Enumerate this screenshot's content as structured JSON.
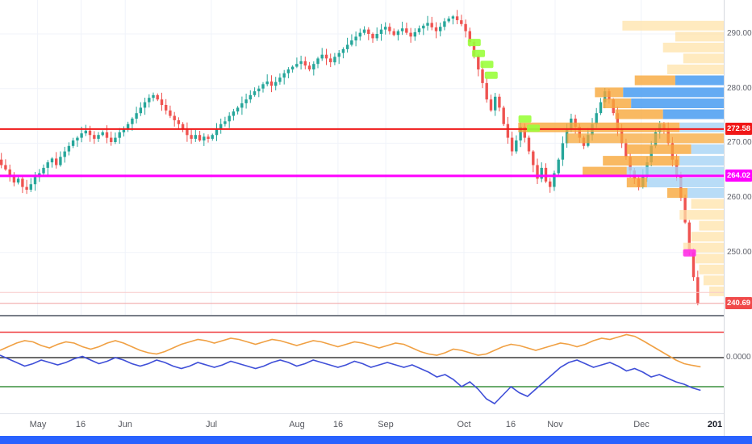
{
  "colors": {
    "up": "#26a69a",
    "down": "#ef5350",
    "vp_yellow": "#ffe3a9",
    "vp_orange": "#f7a83b",
    "vp_blue": "#3d96f0",
    "vp_lightblue": "#a6d3f5",
    "grid": "#f0f3fa",
    "buy_marker": "#9aff3c",
    "sell_marker": "#ff2ee8",
    "osc_orange": "#f0a043",
    "osc_blue": "#3f4fd8",
    "osc_green": "#3a8f3d",
    "osc_zero": "#3c3c3c",
    "osc_upper": "#ef3b3f",
    "bottom_bar": "#2962ff"
  },
  "price_axis": {
    "ticks": [
      290,
      280,
      270,
      260,
      250
    ],
    "tick_labels": [
      "290.00",
      "280.00",
      "270.00",
      "260.00",
      "250.00"
    ],
    "levels": [
      {
        "label": "272.58",
        "value": 272.58,
        "line_color": "#f01717",
        "badge_color": "#f01717",
        "width": 2
      },
      {
        "label": "264.02",
        "value": 264.02,
        "line_color": "#ff00ff",
        "badge_color": "#ff00ff",
        "width": 3
      },
      {
        "label": "",
        "value": 242.7,
        "line_color": "#f8caca",
        "badge_color": "",
        "width": 1
      },
      {
        "label": "240.69",
        "value": 240.69,
        "line_color": "#f0a0a0",
        "badge_color": "#f04a4a",
        "width": 1
      }
    ]
  },
  "time_axis": {
    "labels": [
      {
        "t": "May",
        "f": 0.052
      },
      {
        "t": "16",
        "f": 0.112
      },
      {
        "t": "Jun",
        "f": 0.173
      },
      {
        "t": "Jul",
        "f": 0.292
      },
      {
        "t": "Aug",
        "f": 0.41
      },
      {
        "t": "16",
        "f": 0.467
      },
      {
        "t": "Sep",
        "f": 0.533
      },
      {
        "t": "Oct",
        "f": 0.641
      },
      {
        "t": "16",
        "f": 0.706
      },
      {
        "t": "Nov",
        "f": 0.767
      },
      {
        "t": "Dec",
        "f": 0.886
      },
      {
        "t": "201",
        "f": 0.988,
        "year": true
      }
    ]
  },
  "chart_data": {
    "type": "candlestick",
    "title": "",
    "price_range": {
      "min": 238.6,
      "max": 296.2
    },
    "candles": {
      "closes": [
        266.0,
        265.2,
        264.0,
        262.8,
        263.5,
        262.0,
        261.5,
        262.5,
        263.8,
        264.5,
        265.5,
        266.5,
        267.2,
        266.0,
        267.5,
        268.5,
        269.5,
        270.5,
        271.0,
        271.8,
        272.3,
        271.5,
        270.8,
        271.5,
        272.0,
        271.0,
        270.2,
        271.0,
        272.0,
        272.5,
        273.5,
        274.5,
        275.5,
        276.5,
        277.5,
        278.3,
        278.8,
        278.0,
        277.0,
        276.0,
        275.0,
        274.2,
        273.5,
        272.5,
        271.5,
        270.8,
        271.5,
        270.5,
        271.2,
        270.8,
        271.5,
        272.5,
        273.5,
        274.0,
        275.0,
        275.8,
        276.5,
        277.3,
        278.0,
        278.8,
        279.5,
        280.0,
        280.8,
        281.3,
        280.5,
        281.2,
        282.0,
        282.8,
        283.5,
        284.0,
        284.5,
        285.0,
        284.2,
        283.5,
        284.5,
        285.5,
        286.2,
        285.5,
        284.8,
        285.8,
        286.5,
        287.2,
        288.0,
        288.8,
        289.5,
        290.2,
        290.8,
        290.0,
        289.2,
        290.0,
        290.8,
        291.3,
        290.5,
        289.8,
        290.5,
        291.0,
        290.2,
        289.5,
        290.3,
        291.0,
        291.5,
        292.0,
        291.2,
        290.5,
        291.3,
        292.3,
        292.8,
        293.2,
        292.5,
        291.8,
        290.5,
        288.5,
        286.0,
        283.5,
        281.0,
        278.0,
        276.0,
        278.5,
        276.5,
        273.5,
        271.0,
        268.5,
        270.5,
        273.0,
        271.0,
        268.5,
        266.0,
        263.5,
        265.5,
        263.0,
        262.0,
        264.5,
        267.0,
        270.0,
        272.5,
        274.5,
        273.0,
        271.0,
        269.5,
        271.5,
        273.5,
        275.5,
        277.5,
        279.5,
        278.0,
        275.5,
        272.5,
        270.0,
        267.5,
        265.0,
        263.5,
        262.0,
        264.0,
        266.5,
        269.5,
        272.0,
        273.5,
        272.5,
        270.0,
        267.0,
        264.0,
        260.0,
        255.5,
        250.5,
        245.5,
        240.69
      ]
    },
    "volume_profile": [
      {
        "p": 291.5,
        "w": 0.14,
        "b": 0,
        "c": "y"
      },
      {
        "p": 289.5,
        "w": 0.067,
        "b": 0,
        "c": "y"
      },
      {
        "p": 287.5,
        "w": 0.084,
        "b": 0,
        "c": "y"
      },
      {
        "p": 285.5,
        "w": 0.056,
        "b": 0,
        "c": "y"
      },
      {
        "p": 283.5,
        "w": 0.078,
        "b": 0,
        "c": "y"
      },
      {
        "p": 281.5,
        "w": 0.123,
        "b": 0.067,
        "c": "o"
      },
      {
        "p": 279.3,
        "w": 0.178,
        "b": 0.139,
        "c": "o"
      },
      {
        "p": 277.3,
        "w": 0.167,
        "b": 0.128,
        "c": "o"
      },
      {
        "p": 275.3,
        "w": 0.15,
        "b": 0.084,
        "c": "o"
      },
      {
        "p": 272.9,
        "w": 0.284,
        "b": 0.061,
        "c": "o"
      },
      {
        "p": 270.9,
        "w": 0.217,
        "b": 0,
        "c": "o"
      },
      {
        "p": 268.9,
        "w": 0.134,
        "b": 0.045,
        "c": "o"
      },
      {
        "p": 266.8,
        "w": 0.167,
        "b": 0.061,
        "c": "o"
      },
      {
        "p": 264.8,
        "w": 0.195,
        "b": 0.134,
        "c": "o"
      },
      {
        "p": 262.8,
        "w": 0.134,
        "b": 0.106,
        "c": "o"
      },
      {
        "p": 260.9,
        "w": 0.078,
        "b": 0.05,
        "c": "o"
      },
      {
        "p": 258.9,
        "w": 0.045,
        "b": 0,
        "c": "y"
      },
      {
        "p": 256.9,
        "w": 0.061,
        "b": 0,
        "c": "y"
      },
      {
        "p": 254.9,
        "w": 0.034,
        "b": 0,
        "c": "y"
      },
      {
        "p": 252.9,
        "w": 0.045,
        "b": 0,
        "c": "y"
      },
      {
        "p": 250.9,
        "w": 0.056,
        "b": 0,
        "c": "y"
      },
      {
        "p": 248.9,
        "w": 0.039,
        "b": 0,
        "c": "y"
      },
      {
        "p": 246.9,
        "w": 0.034,
        "b": 0,
        "c": "y"
      },
      {
        "p": 244.9,
        "w": 0.028,
        "b": 0,
        "c": "y"
      },
      {
        "p": 242.9,
        "w": 0.02,
        "b": 0,
        "c": "y"
      }
    ],
    "markers": [
      {
        "i": 112,
        "p": 288.5,
        "type": "buy"
      },
      {
        "i": 113,
        "p": 286.5,
        "type": "buy"
      },
      {
        "i": 115,
        "p": 284.5,
        "type": "buy"
      },
      {
        "i": 116,
        "p": 282.5,
        "type": "buy"
      },
      {
        "i": 124,
        "p": 274.5,
        "type": "buy"
      },
      {
        "i": 126,
        "p": 272.8,
        "type": "buy"
      },
      {
        "i": 163,
        "p": 250.0,
        "type": "sell"
      }
    ],
    "oscillator": {
      "zero_label": "0.0000",
      "range": {
        "min": -2.3,
        "max": 1.7
      },
      "upper": 1.05,
      "lower": -1.2,
      "series": [
        {
          "name": "oscillator-orange",
          "color_key": "osc_orange",
          "values": [
            0.3,
            0.45,
            0.6,
            0.7,
            0.65,
            0.5,
            0.4,
            0.55,
            0.65,
            0.6,
            0.45,
            0.35,
            0.45,
            0.6,
            0.7,
            0.6,
            0.45,
            0.3,
            0.2,
            0.15,
            0.25,
            0.4,
            0.55,
            0.65,
            0.75,
            0.7,
            0.6,
            0.7,
            0.8,
            0.75,
            0.65,
            0.55,
            0.65,
            0.75,
            0.7,
            0.6,
            0.5,
            0.6,
            0.7,
            0.65,
            0.55,
            0.45,
            0.55,
            0.65,
            0.6,
            0.5,
            0.4,
            0.5,
            0.6,
            0.55,
            0.4,
            0.25,
            0.15,
            0.1,
            0.2,
            0.35,
            0.3,
            0.2,
            0.1,
            0.15,
            0.3,
            0.45,
            0.55,
            0.5,
            0.4,
            0.3,
            0.4,
            0.5,
            0.6,
            0.55,
            0.45,
            0.55,
            0.7,
            0.8,
            0.75,
            0.85,
            0.95,
            0.88,
            0.7,
            0.5,
            0.3,
            0.1,
            -0.1,
            -0.25,
            -0.32,
            -0.38
          ]
        },
        {
          "name": "oscillator-blue",
          "color_key": "osc_blue",
          "values": [
            0.1,
            -0.05,
            -0.2,
            -0.35,
            -0.25,
            -0.1,
            -0.2,
            -0.3,
            -0.2,
            -0.05,
            0.05,
            -0.1,
            -0.25,
            -0.15,
            0.0,
            -0.1,
            -0.25,
            -0.35,
            -0.25,
            -0.1,
            -0.2,
            -0.35,
            -0.45,
            -0.35,
            -0.2,
            -0.3,
            -0.4,
            -0.3,
            -0.15,
            -0.25,
            -0.35,
            -0.45,
            -0.35,
            -0.2,
            -0.1,
            -0.2,
            -0.35,
            -0.25,
            -0.1,
            -0.2,
            -0.3,
            -0.4,
            -0.3,
            -0.15,
            -0.25,
            -0.4,
            -0.3,
            -0.2,
            -0.3,
            -0.4,
            -0.3,
            -0.45,
            -0.6,
            -0.8,
            -0.7,
            -0.9,
            -1.2,
            -1.0,
            -1.3,
            -1.7,
            -1.9,
            -1.55,
            -1.2,
            -1.45,
            -1.6,
            -1.3,
            -1.0,
            -0.7,
            -0.4,
            -0.2,
            -0.1,
            -0.25,
            -0.4,
            -0.3,
            -0.2,
            -0.35,
            -0.55,
            -0.45,
            -0.6,
            -0.8,
            -0.7,
            -0.85,
            -1.0,
            -1.1,
            -1.25,
            -1.35
          ]
        }
      ]
    }
  }
}
